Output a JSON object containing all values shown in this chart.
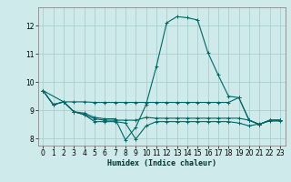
{
  "xlabel": "Humidex (Indice chaleur)",
  "bg_color": "#ceeaea",
  "grid_color": "#aacece",
  "line_color": "#006666",
  "xlim": [
    -0.5,
    23.5
  ],
  "ylim": [
    7.75,
    12.65
  ],
  "xticks": [
    0,
    1,
    2,
    3,
    4,
    5,
    6,
    7,
    8,
    9,
    10,
    11,
    12,
    13,
    14,
    15,
    16,
    17,
    18,
    19,
    20,
    21,
    22,
    23
  ],
  "yticks": [
    8,
    9,
    10,
    11,
    12
  ],
  "lines": [
    {
      "x": [
        0,
        1,
        2,
        3,
        4,
        5,
        6,
        7,
        8,
        9,
        10,
        11,
        12,
        13,
        14,
        15,
        16,
        17,
        18,
        19,
        20,
        21,
        22,
        23
      ],
      "y": [
        9.7,
        9.2,
        9.3,
        8.95,
        8.9,
        8.75,
        8.7,
        8.7,
        7.95,
        8.4,
        9.2,
        10.55,
        12.1,
        12.32,
        12.28,
        12.2,
        11.05,
        10.25,
        9.5,
        9.45,
        8.65,
        8.5,
        8.65,
        8.65
      ]
    },
    {
      "x": [
        0,
        1,
        2,
        3,
        4,
        5,
        6,
        7,
        8,
        9,
        10,
        11,
        12,
        13,
        14,
        15,
        16,
        17,
        18,
        19,
        20,
        21,
        22,
        23
      ],
      "y": [
        9.7,
        9.2,
        9.3,
        9.3,
        9.3,
        9.28,
        9.28,
        9.28,
        9.28,
        9.28,
        9.28,
        9.28,
        9.28,
        9.28,
        9.28,
        9.28,
        9.28,
        9.28,
        9.28,
        9.45,
        8.65,
        8.5,
        8.65,
        8.65
      ]
    },
    {
      "x": [
        0,
        2,
        3,
        4,
        5,
        6,
        7,
        8,
        9,
        10,
        11,
        12,
        13,
        14,
        15,
        16,
        17,
        18,
        19,
        20,
        21,
        22,
        23
      ],
      "y": [
        9.7,
        9.3,
        8.95,
        8.85,
        8.7,
        8.65,
        8.65,
        8.65,
        8.65,
        8.75,
        8.72,
        8.72,
        8.72,
        8.72,
        8.72,
        8.72,
        8.72,
        8.72,
        8.72,
        8.65,
        8.5,
        8.65,
        8.65
      ]
    },
    {
      "x": [
        0,
        1,
        2,
        3,
        4,
        5,
        6,
        7,
        8,
        9,
        10,
        11,
        12,
        13,
        14,
        15,
        16,
        17,
        18,
        19,
        20,
        21,
        22,
        23
      ],
      "y": [
        9.7,
        9.2,
        9.3,
        8.95,
        8.85,
        8.6,
        8.6,
        8.6,
        8.55,
        7.98,
        8.45,
        8.6,
        8.6,
        8.6,
        8.6,
        8.6,
        8.6,
        8.6,
        8.6,
        8.55,
        8.45,
        8.52,
        8.62,
        8.62
      ]
    }
  ]
}
